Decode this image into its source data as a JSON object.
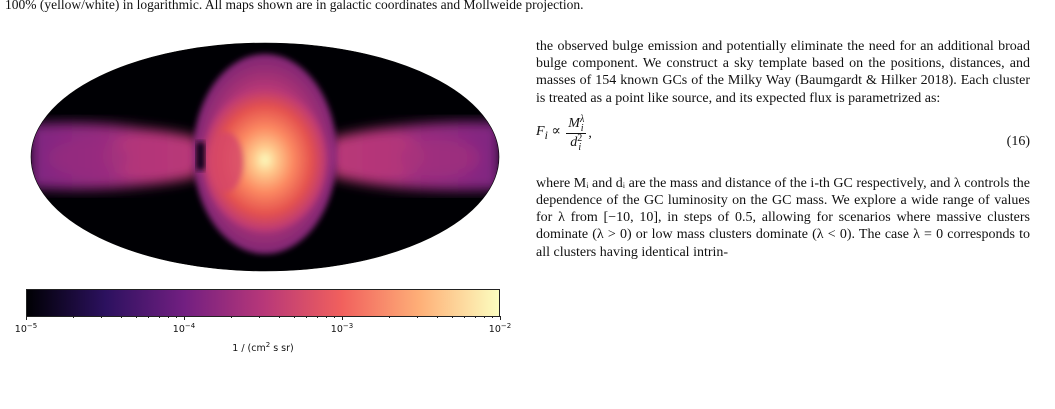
{
  "caption_tail": "100% (yellow/white) in logarithmic. All maps shown are in galactic coordinates and Mollweide projection.",
  "colorbar": {
    "label_text": "1 / (cm",
    "label_exp": "2",
    "label_tail": " s sr)",
    "ticks": [
      {
        "base": "10",
        "exp": "−5"
      },
      {
        "base": "10",
        "exp": "−4"
      },
      {
        "base": "10",
        "exp": "−3"
      },
      {
        "base": "10",
        "exp": "−2"
      }
    ],
    "colors": [
      "#000004",
      "#2c115f",
      "#721f81",
      "#b73779",
      "#f1605d",
      "#feb078",
      "#fcfdbf"
    ]
  },
  "text": {
    "para1": "the observed bulge emission and potentially eliminate the need for an additional broad bulge component. We construct a sky template based on the positions, distances, and masses of 154 known GCs of the Milky Way (Baumgardt & Hilker 2018). Each cluster is treated as a point like source, and its expected flux is parametrized as:",
    "eq_lhs": "F",
    "eq_sub": "i",
    "eq_prop": " ∝ ",
    "eq_num_base": "M",
    "eq_num_sup": "λ",
    "eq_num_sub": "i",
    "eq_den_base": "d",
    "eq_den_sup": "2",
    "eq_den_sub": "i",
    "eq_comma": ",",
    "eq_number": "(16)",
    "para2": "where Mᵢ and dᵢ are the mass and distance of the i-th GC respectively, and λ controls the dependence of the GC luminosity on the GC mass. We explore a wide range of values for λ from [−10, 10], in steps of 0.5, allowing for scenarios where massive clusters dominate (λ > 0) or low mass clusters dominate (λ < 0). The case λ = 0 corresponds to all clusters having identical intrin-"
  }
}
